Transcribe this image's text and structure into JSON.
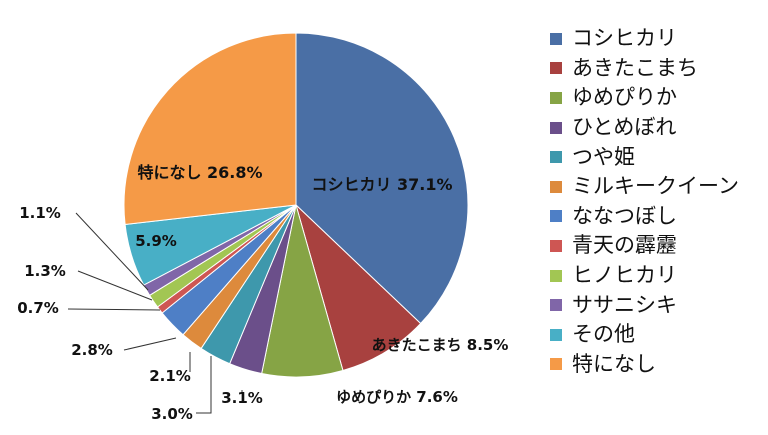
{
  "chart_data": {
    "type": "pie",
    "categories": [
      "コシヒカリ",
      "あきたこまち",
      "ゆめぴりか",
      "ひとめぼれ",
      "つや姫",
      "ミルキークイーン",
      "ななつぼし",
      "青天の霹靂",
      "ヒノヒカリ",
      "ササニシキ",
      "その他",
      "特になし"
    ],
    "values": [
      37.1,
      8.5,
      7.6,
      3.1,
      3.0,
      2.1,
      2.8,
      0.7,
      1.3,
      1.1,
      5.9,
      26.8
    ],
    "colors": [
      "#4A6FA5",
      "#A8413F",
      "#86A445",
      "#6B4F8A",
      "#3E98AC",
      "#DD8A3C",
      "#4E7FC6",
      "#CE5653",
      "#A2C653",
      "#8066A8",
      "#48AFC6",
      "#F59A47"
    ],
    "legend_position": "right",
    "slice_labels": [
      {
        "category": "コシヒカリ",
        "text": "コシヒカリ 37.1%"
      },
      {
        "category": "あきたこまち",
        "text": "あきたこまち 8.5%"
      },
      {
        "category": "ゆめぴりか",
        "text": "ゆめぴりか 7.6%"
      },
      {
        "category": "ひとめぼれ",
        "text": "3.1%"
      },
      {
        "category": "つや姫",
        "text": "3.0%"
      },
      {
        "category": "ミルキークイーン",
        "text": "2.1%"
      },
      {
        "category": "ななつぼし",
        "text": "2.8%"
      },
      {
        "category": "青天の霹靂",
        "text": "0.7%"
      },
      {
        "category": "ヒノヒカリ",
        "text": "1.3%"
      },
      {
        "category": "ササニシキ",
        "text": "1.1%"
      },
      {
        "category": "その他",
        "text": "5.9%"
      },
      {
        "category": "特になし",
        "text": "特になし 26.8%"
      }
    ]
  }
}
